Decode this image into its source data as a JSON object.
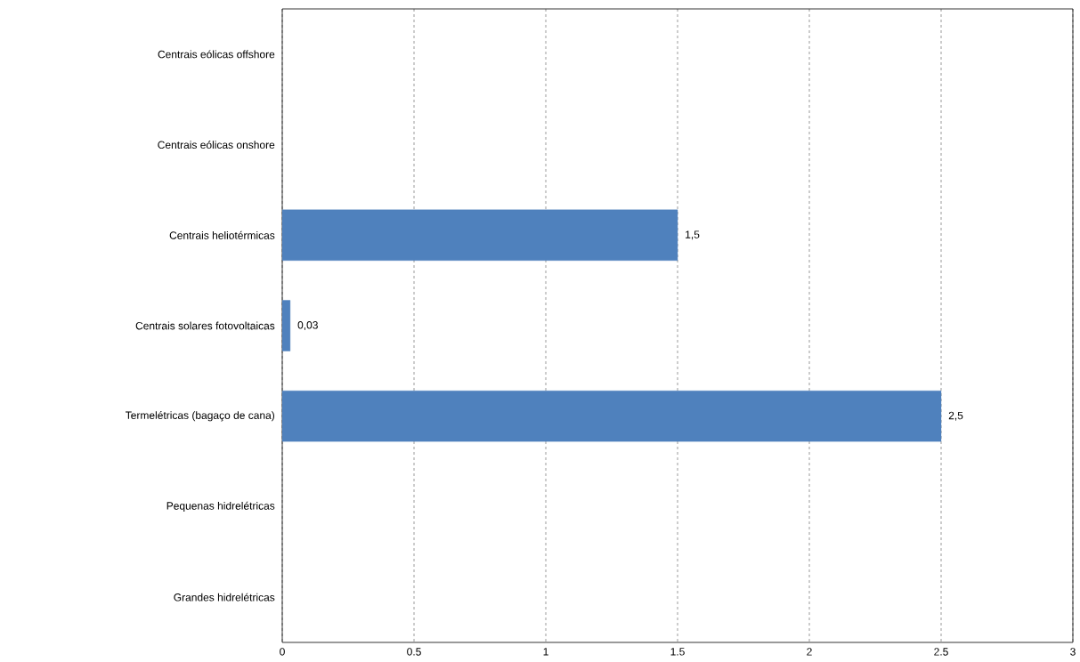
{
  "chart_data": {
    "type": "bar",
    "orientation": "horizontal",
    "categories": [
      "Centrais eólicas offshore",
      "Centrais eólicas onshore",
      "Centrais heliotérmicas",
      "Centrais solares fotovoltaicas",
      "Termelétricas (bagaço de cana)",
      "Pequenas hidrelétricas",
      "Grandes hidrelétricas"
    ],
    "values": [
      null,
      null,
      1.5,
      0.03,
      2.5,
      null,
      null
    ],
    "value_labels": [
      null,
      null,
      "1,5",
      "0,03",
      "2,5",
      null,
      null
    ],
    "color": "#4f81bd",
    "xlim": [
      0,
      3
    ],
    "xticks": [
      0,
      0.5,
      1,
      1.5,
      2,
      2.5,
      3
    ],
    "grid": "x"
  }
}
